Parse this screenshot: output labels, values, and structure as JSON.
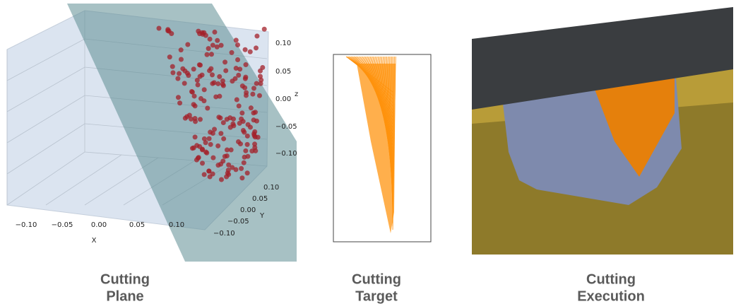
{
  "panels": [
    {
      "caption": [
        "Cutting",
        "Plane"
      ],
      "axes": {
        "z_ticks": [
          "0.10",
          "0.05",
          "0.00",
          "−0.05",
          "−0.10"
        ],
        "x_ticks": [
          "−0.10",
          "−0.05",
          "0.00",
          "0.05",
          "0.10"
        ],
        "y_ticks": [
          "0.10",
          "0.05",
          "0.00",
          "−0.05",
          "−0.10"
        ],
        "x_label": "X",
        "y_label": "Y",
        "z_label": "z"
      }
    },
    {
      "caption": [
        "Cutting",
        "Target"
      ]
    },
    {
      "caption": [
        "Cutting",
        "Execution"
      ]
    }
  ]
}
